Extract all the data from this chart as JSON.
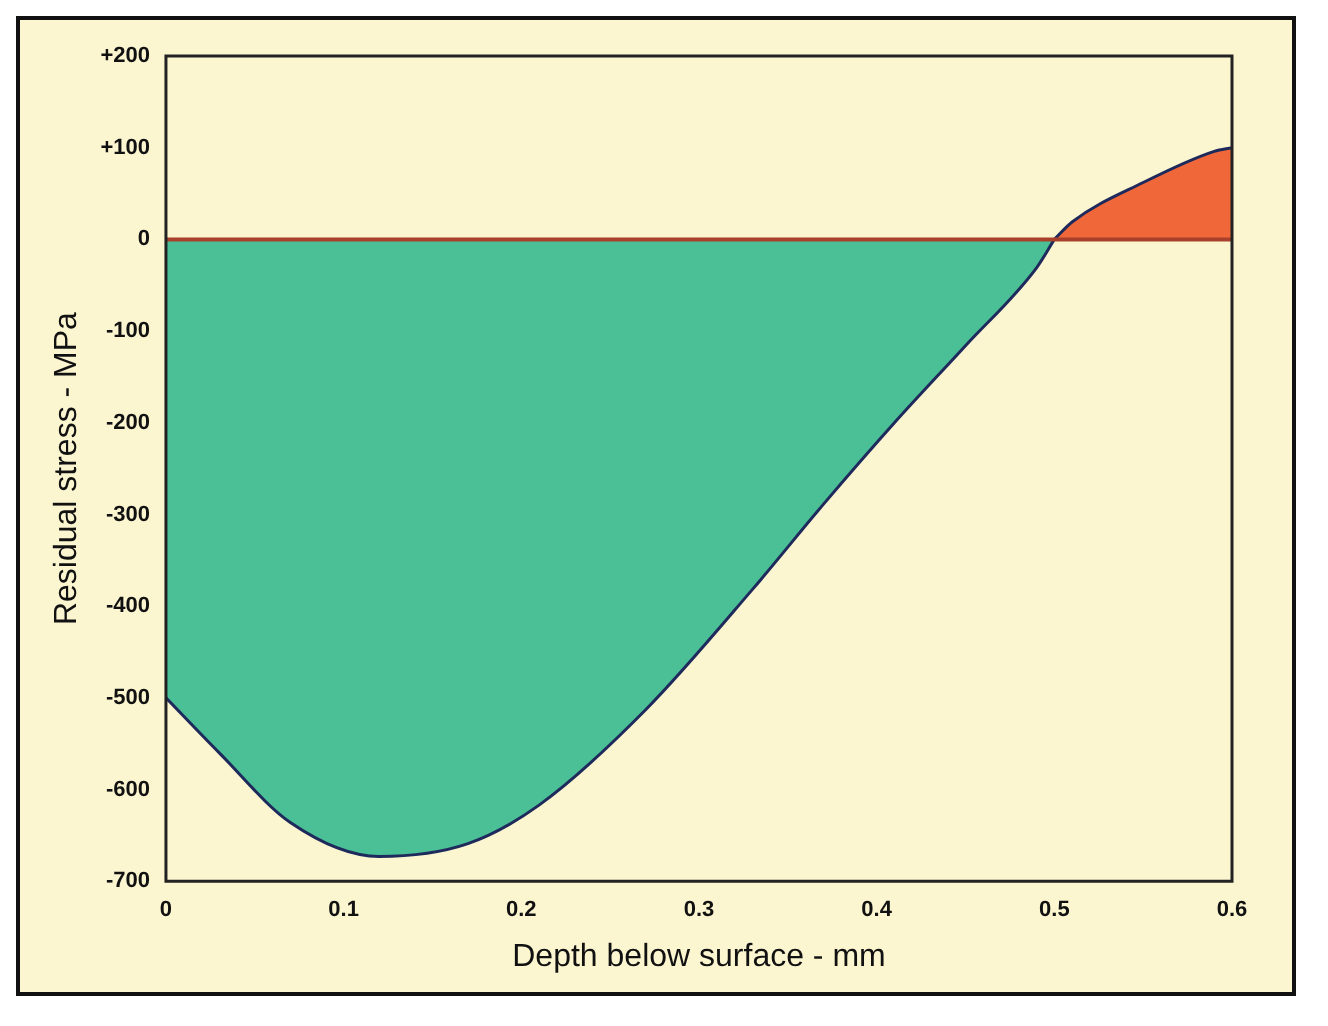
{
  "chart_data": {
    "type": "area",
    "xlabel": "Depth below surface - mm",
    "ylabel": "Residual stress - MPa",
    "series": [
      {
        "color": "#4bbf96",
        "x": [
          0,
          0.03,
          0.07,
          0.12,
          0.17,
          0.21,
          0.27,
          0.33,
          0.37,
          0.41,
          0.45,
          0.49,
          0.5
        ],
        "values": [
          -500,
          -560,
          -636,
          -673,
          -659,
          -617,
          -513,
          -382,
          -289,
          -200,
          -116,
          -31,
          0
        ]
      },
      {
        "color": "#f0683a",
        "x": [
          0.5,
          0.51,
          0.55,
          0.59,
          0.6
        ],
        "values": [
          0,
          19,
          62,
          96,
          100
        ]
      }
    ],
    "xlim": [
      0,
      0.6
    ],
    "xticks": [
      0,
      0.1,
      0.2,
      0.3,
      0.4,
      0.5,
      0.6
    ],
    "ylim": [
      -700,
      200
    ],
    "yticks": [
      {
        "value": 200,
        "label": "+200"
      },
      {
        "value": 100,
        "label": "+100"
      },
      0,
      -100,
      -200,
      -300,
      -400,
      -500,
      -600,
      -700
    ],
    "ref_lines": [
      {
        "axis": "y",
        "value": 0,
        "color": "#a8402c"
      }
    ],
    "grid": false,
    "legend": false
  }
}
